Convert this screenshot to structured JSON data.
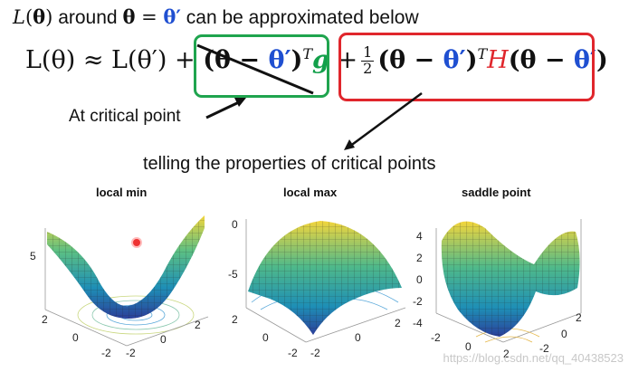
{
  "headline": {
    "L": "L",
    "open_paren": "(",
    "theta": "θ",
    "close_paren": ")",
    "around": " around ",
    "theta2": "θ",
    "equals": " = ",
    "theta_prime": "θ′",
    "rest": " can be approximated below"
  },
  "equation": {
    "lhs": "L(θ) ≈ L(θ′) + ",
    "green_term_a": "(θ − ",
    "green_term_b": "θ′",
    "green_term_c": ")",
    "green_term_sup": "T",
    "green_term_g": "g",
    "plus": " +",
    "frac_num": "1",
    "frac_den": "2",
    "red_a": "(θ − ",
    "red_b": "θ′",
    "red_c": ")",
    "red_sup": "T",
    "red_H": "H",
    "red_d": "(θ − ",
    "red_e": "θ′",
    "red_f": ")"
  },
  "annotations": {
    "at_critical_point": "At critical point",
    "telling": "telling the properties of critical points"
  },
  "plots": [
    {
      "title": "local min",
      "z_ticks": [
        "5"
      ],
      "x_ticks": [
        "2",
        "0",
        "-2"
      ],
      "y_ticks": [
        "-2",
        "0",
        "2"
      ]
    },
    {
      "title": "local max",
      "z_ticks": [
        "0",
        "-5"
      ],
      "x_ticks": [
        "2",
        "0",
        "-2"
      ],
      "y_ticks": [
        "-2",
        "0",
        "2"
      ]
    },
    {
      "title": "saddle point",
      "z_ticks": [
        "4",
        "2",
        "0",
        "-2",
        "-4"
      ],
      "x_ticks": [
        "-2",
        "0",
        "2"
      ],
      "y_ticks": [
        "2",
        "0",
        "-2"
      ]
    }
  ],
  "watermark": "https://blog.csdn.net/qq_40438523",
  "colors": {
    "green_box": "#1fa44e",
    "red_box": "#e0262c",
    "theta_prime_blue": "#1f4fd1",
    "H_red": "#e0262c",
    "g_green": "#12a04a"
  }
}
